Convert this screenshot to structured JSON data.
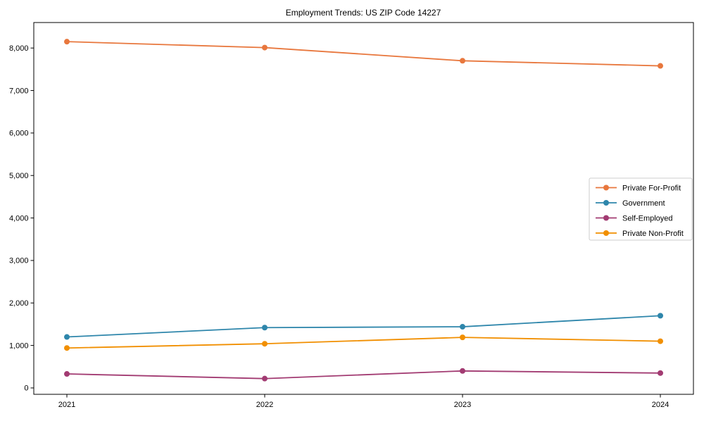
{
  "chart_data": {
    "type": "line",
    "title": "Employment Trends: US ZIP Code 14227",
    "x_labels": [
      "2021",
      "2022",
      "2023",
      "2024"
    ],
    "series": [
      {
        "name": "Private For-Profit",
        "color": "#E8773D",
        "values": [
          8150,
          8010,
          7700,
          7580
        ]
      },
      {
        "name": "Government",
        "color": "#2E86AB",
        "values": [
          1200,
          1420,
          1440,
          1700
        ]
      },
      {
        "name": "Self-Employed",
        "color": "#A23B72",
        "values": [
          330,
          220,
          400,
          350
        ]
      },
      {
        "name": "Private Non-Profit",
        "color": "#F18F01",
        "values": [
          940,
          1040,
          1190,
          1100
        ]
      }
    ],
    "ylim": [
      -150,
      8600
    ],
    "yticks": [
      0,
      1000,
      2000,
      3000,
      4000,
      5000,
      6000,
      7000,
      8000
    ],
    "ytick_labels": [
      "0",
      "1,000",
      "2,000",
      "3,000",
      "4,000",
      "5,000",
      "6,000",
      "7,000",
      "8,000"
    ],
    "grid": false,
    "legend_position": "center right",
    "axis_color": "#000000",
    "legend_border_color": "#cccccc",
    "background_color": "#ffffff"
  }
}
